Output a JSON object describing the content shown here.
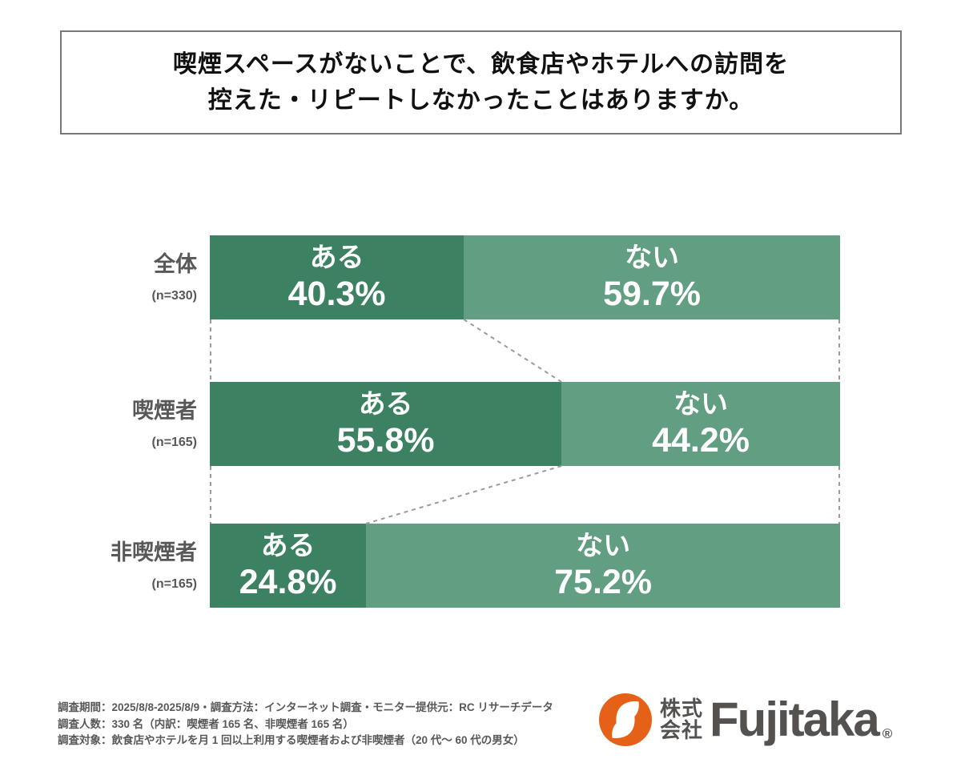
{
  "header": {
    "title_line1": "喫煙スペースがないことで、飲食店やホテルへの訪問を",
    "title_line2": "控えた・リピートしなかったことはありますか。"
  },
  "chart_data": {
    "type": "bar",
    "orientation": "horizontal-stacked",
    "title": "喫煙スペースがないことで、飲食店やホテルへの訪問を控えた・リピートしなかったことはありますか。",
    "answer_labels": [
      "ある",
      "ない"
    ],
    "value_unit": "%",
    "xlim": [
      0,
      100
    ],
    "rows": [
      {
        "group": "全体",
        "n_label": "(n=330)",
        "segments": [
          {
            "label": "ある",
            "pct": 40.3,
            "pct_label": "40.3%"
          },
          {
            "label": "ない",
            "pct": 59.7,
            "pct_label": "59.7%"
          }
        ]
      },
      {
        "group": "喫煙者",
        "n_label": "(n=165)",
        "segments": [
          {
            "label": "ある",
            "pct": 55.8,
            "pct_label": "55.8%"
          },
          {
            "label": "ない",
            "pct": 44.2,
            "pct_label": "44.2%"
          }
        ]
      },
      {
        "group": "非喫煙者",
        "n_label": "(n=165)",
        "segments": [
          {
            "label": "ある",
            "pct": 24.8,
            "pct_label": "24.8%"
          },
          {
            "label": "ない",
            "pct": 75.2,
            "pct_label": "75.2%"
          }
        ]
      }
    ],
    "colors": {
      "answer_yes": "#3d8163",
      "answer_no": "#629e82",
      "connector": "#9b9b9b",
      "label_gray": "#595757"
    },
    "legend_position": "none",
    "grid": false
  },
  "footer": {
    "line1": "調査期間：2025/8/8-2025/8/9・調査方法：インターネット調査・モニター提供元：RC リサーチデータ",
    "line2": "調査人数：330 名（内訳：喫煙者 165 名、非喫煙者 165 名）",
    "line3": "調査対象：飲食店やホテルを月 1 回以上利用する喫煙者および非喫煙者（20 代〜 60 代の男女）"
  },
  "logo": {
    "company_prefix_line1": "株式",
    "company_prefix_line2": "会社",
    "brand": "Fujitaka",
    "registered_mark": "®",
    "accent_orange": "#e56118",
    "brand_gray": "#54514f"
  }
}
